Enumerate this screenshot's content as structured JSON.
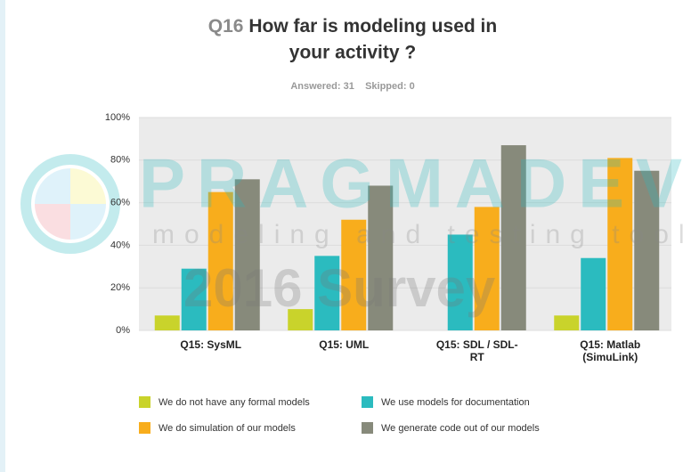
{
  "chart_data": {
    "type": "bar",
    "title_prefix": "Q16",
    "title": "How far is modeling used in your activity ?",
    "subtitle": "Answered: 31    Skipped: 0",
    "watermark": {
      "brand": "PRAGMADEV",
      "tagline": "modeling and testing tools",
      "survey": "2016 Survey"
    },
    "categories": [
      "Q15: SysML",
      "Q15: UML",
      "Q15: SDL / SDL-RT",
      "Q15: Matlab (SimuLink)"
    ],
    "series": [
      {
        "name": "We do not have any formal models",
        "color": "#c9d32b",
        "values": [
          7,
          10,
          0,
          7
        ]
      },
      {
        "name": "We use models for documentation",
        "color": "#2bbbbf",
        "values": [
          29,
          35,
          45,
          34
        ]
      },
      {
        "name": "We do simulation of our models",
        "color": "#f8ad1c",
        "values": [
          65,
          52,
          58,
          81
        ]
      },
      {
        "name": "We generate code out of our models",
        "color": "#878a7b",
        "values": [
          71,
          68,
          87,
          75
        ]
      }
    ],
    "ylim": [
      0,
      100
    ],
    "yticks": [
      {
        "value": 0,
        "label": "0%"
      },
      {
        "value": 20,
        "label": "20%"
      },
      {
        "value": 40,
        "label": "40%"
      },
      {
        "value": 60,
        "label": "60%"
      },
      {
        "value": 80,
        "label": "80%"
      },
      {
        "value": 100,
        "label": "100%"
      }
    ],
    "grid": true
  }
}
